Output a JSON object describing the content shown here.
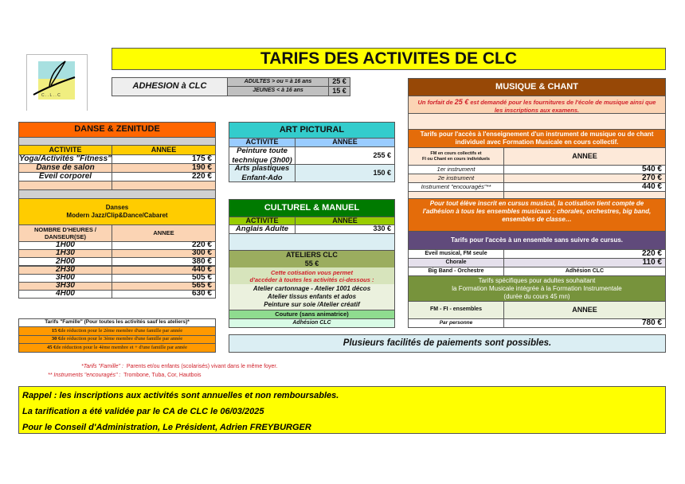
{
  "title": "TARIFS DES ACTIVITES DE CLC",
  "logo": {
    "text": "C L C"
  },
  "adhesion": {
    "label": "ADHESION à CLC",
    "rows": [
      {
        "label": "ADULTES > ou = à 16 ans",
        "price": "25 €"
      },
      {
        "label": "JEUNES < à 16 ans",
        "price": "15 €"
      }
    ]
  },
  "danse": {
    "title": "DANSE & ZENITUDE",
    "col_activite": "ACTIVITE",
    "col_annee": "ANNEE",
    "rows": [
      {
        "name": "Yoga/Activités \"Fitness\"",
        "price": "175 €"
      },
      {
        "name": "Danse de salon",
        "price": "190 €"
      },
      {
        "name": "Eveil corporel",
        "price": "220 €"
      }
    ],
    "danses_title": "Danses",
    "danses_subtitle": "Modern Jazz/Clip&Dance/Cabaret",
    "col_heures": "NOMBRE D'HEURES / DANSEUR(SE)",
    "hours": [
      {
        "h": "1H00",
        "price": "220 €"
      },
      {
        "h": "1H30",
        "price": "300 €"
      },
      {
        "h": "2H00",
        "price": "380 €"
      },
      {
        "h": "2H30",
        "price": "440 €"
      },
      {
        "h": "3H00",
        "price": "505 €"
      },
      {
        "h": "3H30",
        "price": "565 €"
      },
      {
        "h": "4H00",
        "price": "630 €"
      }
    ]
  },
  "famille": {
    "title": "Tarifs \"Famille\" (Pour toutes les activités sauf les ateliers)*",
    "rows": [
      {
        "amount": "15 €",
        "text": " de réduction pour le 2ème membre d'une famille par année"
      },
      {
        "amount": "30 €",
        "text": " de réduction pour le 3ème membre d'une famille par année"
      },
      {
        "amount": "45 €",
        "text": " de réduction pour le 4ème membre et + d'une famille par année"
      }
    ]
  },
  "art": {
    "title": "ART PICTURAL",
    "col_activite": "ACTIVITE",
    "col_annee": "ANNEE",
    "rows": [
      {
        "name": "Peinture toute technique (3h00)",
        "price": "255 €"
      },
      {
        "name": "Arts plastiques Enfant-Ado",
        "price": "150 €"
      }
    ]
  },
  "culturel": {
    "title": "CULTUREL & MANUEL",
    "col_activite": "ACTIVITE",
    "col_annee": "ANNEE",
    "rows": [
      {
        "name": "Anglais Adulte",
        "price": "330 €"
      }
    ],
    "ateliers_title": "ATELIERS CLC",
    "ateliers_price": "55 €",
    "ateliers_note_1": "Cette cotisation vous permet",
    "ateliers_note_2": "d'accéder à toutes les activités ci-dessous :",
    "ateliers_list": [
      "Atelier cartonnage - Atelier 1001 décos",
      "Atelier tissus enfants et ados",
      "Peinture sur soie /Atelier créatif"
    ],
    "couture": "Couture (sans animatrice)",
    "adhesion": "Adhésion CLC"
  },
  "paiement": "Plusieurs facilités de paiements sont possibles.",
  "musique": {
    "title": "MUSIQUE & CHANT",
    "forfait_1": "Un forfait de ",
    "forfait_amount": "25 €",
    "forfait_2": " est demandé pour les fournitures de l'école de musique ainsi que les inscriptions aux examens.",
    "tarifs_instrument": "Tarifs pour l'accès à l'enseignement d'un instrument de musique ou de chant individuel avec Formation Musicale en cours collectif.",
    "col_fm_1": "FM en cours collectifs et",
    "col_fm_2": "FI ou Chant en cours individuels",
    "col_annee": "ANNEE",
    "instruments": [
      {
        "name": "1er instrument",
        "price": "540 €"
      },
      {
        "name": "2e instrument",
        "price": "270 €"
      },
      {
        "name": "Instrument \"encouragés\"**",
        "price": "440 €"
      }
    ],
    "cursus_note": "Pour tout élève inscrit en cursus musical, la cotisation tient compte de l'adhésion à tous les ensembles musicaux : chorales, orchestres, big band, ensembles de classe…",
    "ensemble_title": "Tarifs pour l'accès à un ensemble sans suivre de cursus.",
    "ensembles": [
      {
        "name": "Eveil musical, FM seule",
        "price": "220 €"
      },
      {
        "name": "Chorale",
        "price": "110 €"
      },
      {
        "name": "Big Band - Orchestre",
        "price": "Adhésion CLC"
      }
    ],
    "adultes_title_1": "Tarifs spécifiques pour adultes souhaitant",
    "adultes_title_2": "la Formation Musicale intégrée à la Formation Instrumentale",
    "adultes_title_3": "(durée du cours 45 mn)",
    "col_fmfi": "FM - FI - ensembles",
    "par_personne": "Par personne",
    "par_personne_price": "780 €"
  },
  "notes": [
    {
      "label": "*Tarifs \"Famille\" :",
      "text": "Parents et/ou enfants (scolarisés) vivant dans le même foyer."
    },
    {
      "label": "** Instruments \"encouragés\" :",
      "text": "Trombone, Tuba, Cor, Hautbois"
    }
  ],
  "rappel": [
    "Rappel  : les inscriptions aux activités sont annuelles et non remboursables.",
    "La tarification a été validée par le CA de CLC le 06/03/2025",
    "Pour le Conseil d'Administration, Le Président, Adrien FREYBURGER"
  ],
  "colors": {
    "title_bg": "#ffff00",
    "danse_header": "#ff6600",
    "yellow": "#ffcc00",
    "peach": "#fbd4b4",
    "art_header": "#33cccc",
    "culturel_header": "#007a00",
    "musique_header": "#974806",
    "orange": "#e46c0a",
    "purple": "#604a7b",
    "olive": "#77933c"
  }
}
